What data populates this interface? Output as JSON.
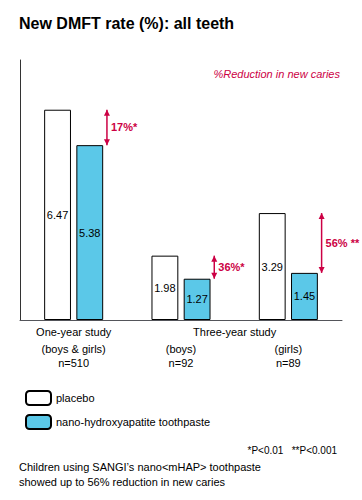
{
  "chart_data": {
    "type": "bar",
    "title": "New DMFT rate (%): all teeth",
    "subtitle": "Children using SANGI’s nano<mHAP> toothpaste\nshowed up to 56% reduction in new caries",
    "categories": [
      "(boys & girls)\nn=510",
      "(boys)\nn=92",
      "(girls)\nn=89"
    ],
    "category_groups": [
      {
        "label": "One-year study",
        "span": 1
      },
      {
        "label": "Three-year study",
        "span": 2
      }
    ],
    "series": [
      {
        "name": "placebo",
        "color": "#FFFFFF",
        "values": [
          6.47,
          1.98,
          3.29
        ]
      },
      {
        "name": "nano-hydroxyapatite toothpaste",
        "color": "#5BC8E8",
        "values": [
          5.38,
          1.27,
          1.45
        ]
      }
    ],
    "ylim": [
      0,
      8.0
    ],
    "yticks": [],
    "tick_labels": "x",
    "grid": false,
    "legend": "bottom",
    "data_labels": true,
    "annotations": [
      {
        "text": "17%*",
        "category": "(boys & girls)\nn=510",
        "from": 6.47,
        "to": 5.38,
        "color": "#CC0044"
      },
      {
        "text": "36%*",
        "category": "(boys)\nn=92",
        "from": 1.98,
        "to": 1.27,
        "color": "#CC0044"
      },
      {
        "text": "56% **",
        "category": "(girls)\nn=89",
        "from": 3.29,
        "to": 1.45,
        "color": "#CC0044"
      },
      {
        "text": "%Reduction in new caries",
        "color": "#CC0044"
      }
    ],
    "footnote": "*P<0.01   **P<0.001"
  }
}
